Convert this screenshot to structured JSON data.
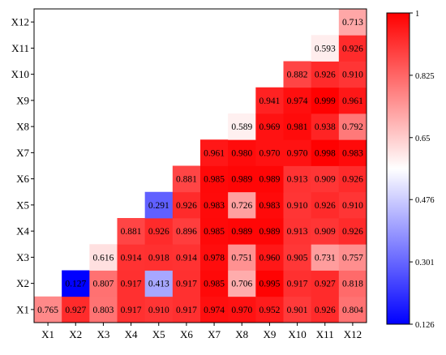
{
  "chart_data": {
    "type": "heatmap",
    "title": "",
    "xlabel": "",
    "ylabel": "",
    "x_categories": [
      "X1",
      "X2",
      "X3",
      "X4",
      "X5",
      "X6",
      "X7",
      "X8",
      "X9",
      "X10",
      "X11",
      "X12"
    ],
    "y_categories": [
      "X1",
      "X2",
      "X3",
      "X4",
      "X5",
      "X6",
      "X7",
      "X8",
      "X9",
      "X10",
      "X11",
      "X12"
    ],
    "color_scale": {
      "min": 0.126,
      "max": 1,
      "colors": [
        "#0000ff",
        "#ffffff",
        "#ff0000"
      ],
      "ticks": [
        1,
        0.825,
        0.65,
        0.476,
        0.301,
        0.126
      ],
      "tick_labels": [
        "1",
        "0.825",
        "0.65",
        "0.476",
        "0.301",
        "0.126"
      ]
    },
    "matrix": [
      [
        0.765,
        0.927,
        0.803,
        0.917,
        0.91,
        0.917,
        0.974,
        0.97,
        0.952,
        0.901,
        0.926,
        0.804
      ],
      [
        null,
        0.127,
        0.807,
        0.917,
        0.413,
        0.917,
        0.985,
        0.706,
        0.995,
        0.917,
        0.927,
        0.818
      ],
      [
        null,
        null,
        0.616,
        0.914,
        0.918,
        0.914,
        0.978,
        0.751,
        0.96,
        0.905,
        0.731,
        0.757
      ],
      [
        null,
        null,
        null,
        0.881,
        0.926,
        0.896,
        0.985,
        0.989,
        0.989,
        0.913,
        0.909,
        0.926
      ],
      [
        null,
        null,
        null,
        null,
        0.291,
        0.926,
        0.983,
        0.726,
        0.983,
        0.91,
        0.926,
        0.91
      ],
      [
        null,
        null,
        null,
        null,
        null,
        0.881,
        0.985,
        0.989,
        0.989,
        0.913,
        0.909,
        0.926
      ],
      [
        null,
        null,
        null,
        null,
        null,
        null,
        0.961,
        0.98,
        0.97,
        0.97,
        0.998,
        0.983
      ],
      [
        null,
        null,
        null,
        null,
        null,
        null,
        null,
        0.589,
        0.969,
        0.981,
        0.938,
        0.792
      ],
      [
        null,
        null,
        null,
        null,
        null,
        null,
        null,
        null,
        0.941,
        0.974,
        0.999,
        0.961
      ],
      [
        null,
        null,
        null,
        null,
        null,
        null,
        null,
        null,
        null,
        0.882,
        0.926,
        0.91
      ],
      [
        null,
        null,
        null,
        null,
        null,
        null,
        null,
        null,
        null,
        null,
        0.593,
        0.926
      ],
      [
        null,
        null,
        null,
        null,
        null,
        null,
        null,
        null,
        null,
        null,
        null,
        0.713
      ]
    ],
    "cell_labels": [
      [
        "0.765",
        "0.927",
        "0.803",
        "0.917",
        "0.910",
        "0.917",
        "0.974",
        "0.970",
        "0.952",
        "0.901",
        "0.926",
        "0.804"
      ],
      [
        "",
        "0.127",
        "0.807",
        "0.917",
        "0.413",
        "0.917",
        "0.985",
        "0.706",
        "0.995",
        "0.917",
        "0.927",
        "0.818"
      ],
      [
        "",
        "",
        "0.616",
        "0.914",
        "0.918",
        "0.914",
        "0.978",
        "0.751",
        "0.960",
        "0.905",
        "0.731",
        "0.757"
      ],
      [
        "",
        "",
        "",
        "0.881",
        "0.926",
        "0.896",
        "0.985",
        "0.989",
        "0.989",
        "0.913",
        "0.909",
        "0.926"
      ],
      [
        "",
        "",
        "",
        "",
        "0.291",
        "0.926",
        "0.983",
        "0.726",
        "0.983",
        "0.910",
        "0.926",
        "0.910"
      ],
      [
        "",
        "",
        "",
        "",
        "",
        "0.881",
        "0.985",
        "0.989",
        "0.989",
        "0.913",
        "0.909",
        "0.926"
      ],
      [
        "",
        "",
        "",
        "",
        "",
        "",
        "0.961",
        "0.980",
        "0.970",
        "0.970",
        "0.998",
        "0.983"
      ],
      [
        "",
        "",
        "",
        "",
        "",
        "",
        "",
        "0.589",
        "0.969",
        "0.981",
        "0.938",
        "0.792"
      ],
      [
        "",
        "",
        "",
        "",
        "",
        "",
        "",
        "",
        "0.941",
        "0.974",
        "0.999",
        "0.961"
      ],
      [
        "",
        "",
        "",
        "",
        "",
        "",
        "",
        "",
        "",
        "0.882",
        "0.926",
        "0.910"
      ],
      [
        "",
        "",
        "",
        "",
        "",
        "",
        "",
        "",
        "",
        "",
        "0.593",
        "0.926"
      ],
      [
        "",
        "",
        "",
        "",
        "",
        "",
        "",
        "",
        "",
        "",
        "",
        "0.713"
      ]
    ]
  }
}
